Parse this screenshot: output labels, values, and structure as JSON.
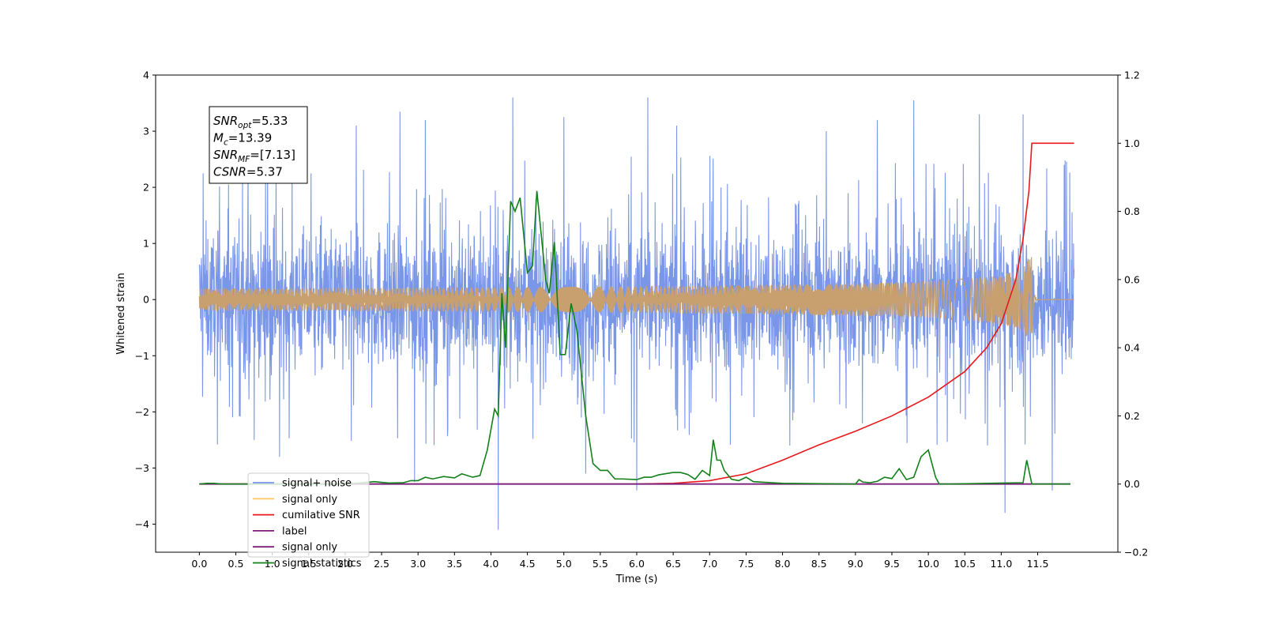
{
  "chart_data": {
    "type": "line",
    "title": "",
    "xlabel": "Time (s)",
    "ylabel": "Whitened strain",
    "y2label": "",
    "xlim": [
      -0.6,
      12.6
    ],
    "ylim": [
      -4.5,
      4.0
    ],
    "y2lim": [
      -0.2,
      1.2
    ],
    "x_ticks": [
      "0.0",
      "0.5",
      "1.0",
      "1.5",
      "2.0",
      "2.5",
      "3.0",
      "3.5",
      "4.0",
      "4.5",
      "5.0",
      "5.5",
      "6.0",
      "6.5",
      "7.0",
      "7.5",
      "8.0",
      "8.5",
      "9.0",
      "9.5",
      "10.0",
      "10.5",
      "11.0",
      "11.5"
    ],
    "y_ticks": [
      "4",
      "3",
      "2",
      "1",
      "0",
      "−1",
      "−2",
      "−3",
      "−4"
    ],
    "y2_ticks": [
      "1.2",
      "1.0",
      "0.8",
      "0.6",
      "0.4",
      "0.2",
      "0.0",
      "−0.2"
    ],
    "grid": false,
    "legend_location": "lower left",
    "colors": {
      "noise": "#6b8be6",
      "signal": "#c8a070",
      "signal_legend": "#ffb84d",
      "snr": "#e8191c",
      "label": "#7b1f7b",
      "stats": "#13801a"
    },
    "legend": [
      {
        "label": "signal+ noise",
        "color": "#7a96e8"
      },
      {
        "label": "signal only",
        "color": "#ffc766"
      },
      {
        "label": "cumilative SNR",
        "color": "#e8191c"
      },
      {
        "label": "label",
        "color": "#7b1f7b"
      },
      {
        "label": "signal only",
        "color": "#7b1f7b"
      },
      {
        "label": "signal statistics",
        "color": "#13801a"
      }
    ],
    "annotation": {
      "lines": [
        {
          "sym": "SNR",
          "sub": "opt",
          "val": "=5.33"
        },
        {
          "sym": "M",
          "sub": "c",
          "val": "=13.39"
        },
        {
          "sym": "SNR",
          "sub": "MF",
          "val": "=[7.13]"
        },
        {
          "sym": "CSNR",
          "sub": "",
          "val": "=5.37"
        }
      ]
    },
    "series": [
      {
        "name": "signal+ noise",
        "axis": "left",
        "x_range": [
          0.0,
          12.0
        ],
        "envelope_typical": [
          -1.6,
          1.6
        ],
        "spikes": [
          {
            "x": 0.05,
            "y": 2.25
          },
          {
            "x": 0.4,
            "y": 2.05
          },
          {
            "x": 1.05,
            "y": 2.45
          },
          {
            "x": 2.15,
            "y": 3.1
          },
          {
            "x": 2.75,
            "y": 3.35
          },
          {
            "x": 2.95,
            "y": -3.25
          },
          {
            "x": 3.1,
            "y": 3.2
          },
          {
            "x": 4.1,
            "y": -4.1
          },
          {
            "x": 4.3,
            "y": 3.6
          },
          {
            "x": 5.0,
            "y": 3.25
          },
          {
            "x": 5.3,
            "y": -3.1
          },
          {
            "x": 6.0,
            "y": -3.4
          },
          {
            "x": 6.15,
            "y": 3.6
          },
          {
            "x": 6.55,
            "y": 3.1
          },
          {
            "x": 8.6,
            "y": 3.0
          },
          {
            "x": 9.3,
            "y": 3.2
          },
          {
            "x": 9.8,
            "y": 3.55
          },
          {
            "x": 10.7,
            "y": 3.3
          },
          {
            "x": 11.05,
            "y": -3.8
          },
          {
            "x": 11.3,
            "y": 3.3
          },
          {
            "x": 11.7,
            "y": -3.4
          },
          {
            "x": 0.75,
            "y": -2.5
          },
          {
            "x": 1.1,
            "y": -2.8
          },
          {
            "x": 8.1,
            "y": -2.6
          }
        ]
      },
      {
        "name": "signal only",
        "axis": "left",
        "chirp": {
          "t_start": 0.0,
          "t_merge": 11.42,
          "t_end": 12.0,
          "peak_amplitude": 1.05
        }
      },
      {
        "name": "cumilative SNR",
        "axis": "right",
        "x": [
          0.0,
          6.0,
          6.5,
          7.0,
          7.5,
          8.0,
          8.5,
          9.0,
          9.5,
          10.0,
          10.5,
          10.8,
          11.0,
          11.2,
          11.3,
          11.38,
          11.42,
          12.0
        ],
        "y": [
          0.0,
          0.0,
          0.002,
          0.01,
          0.03,
          0.07,
          0.115,
          0.155,
          0.2,
          0.255,
          0.33,
          0.4,
          0.47,
          0.6,
          0.72,
          0.86,
          1.0,
          1.0
        ]
      },
      {
        "name": "label",
        "axis": "right",
        "x": [
          0.0,
          11.95
        ],
        "y": [
          0.0,
          0.0
        ]
      },
      {
        "name": "signal statistics",
        "axis": "right",
        "x": [
          0.0,
          0.1,
          0.2,
          0.3,
          1.0,
          2.0,
          2.2,
          2.4,
          2.6,
          2.8,
          2.9,
          3.0,
          3.1,
          3.2,
          3.35,
          3.5,
          3.6,
          3.75,
          3.85,
          3.95,
          4.05,
          4.1,
          4.15,
          4.2,
          4.27,
          4.33,
          4.4,
          4.5,
          4.57,
          4.63,
          4.7,
          4.75,
          4.8,
          4.87,
          4.95,
          5.02,
          5.1,
          5.18,
          5.3,
          5.4,
          5.5,
          5.6,
          5.7,
          5.8,
          6.0,
          6.1,
          6.2,
          6.3,
          6.5,
          6.6,
          6.7,
          6.8,
          6.9,
          7.0,
          7.05,
          7.1,
          7.15,
          7.2,
          7.3,
          7.4,
          7.5,
          7.6,
          8.0,
          9.0,
          9.05,
          9.1,
          9.2,
          9.3,
          9.4,
          9.5,
          9.6,
          9.7,
          9.8,
          9.9,
          10.0,
          10.1,
          10.15,
          10.2,
          10.3,
          11.3,
          11.35,
          11.42,
          11.5,
          11.95
        ],
        "y": [
          0.0,
          0.002,
          0.002,
          0.0,
          0.0,
          0.0,
          0.003,
          0.007,
          0.003,
          0.004,
          0.01,
          0.01,
          0.02,
          0.015,
          0.022,
          0.018,
          0.03,
          0.02,
          0.025,
          0.1,
          0.22,
          0.2,
          0.56,
          0.4,
          0.83,
          0.8,
          0.84,
          0.62,
          0.64,
          0.86,
          0.71,
          0.6,
          0.56,
          0.71,
          0.38,
          0.38,
          0.53,
          0.45,
          0.2,
          0.06,
          0.04,
          0.04,
          0.015,
          0.015,
          0.013,
          0.02,
          0.02,
          0.027,
          0.034,
          0.034,
          0.028,
          0.014,
          0.04,
          0.025,
          0.13,
          0.07,
          0.07,
          0.04,
          0.014,
          0.01,
          0.02,
          0.007,
          0.002,
          0.0,
          0.013,
          0.006,
          0.004,
          0.008,
          0.02,
          0.016,
          0.045,
          0.013,
          0.02,
          0.08,
          0.1,
          0.02,
          0.0,
          0.0,
          0.0,
          0.004,
          0.07,
          0.0,
          0.0,
          0.0
        ]
      }
    ]
  }
}
